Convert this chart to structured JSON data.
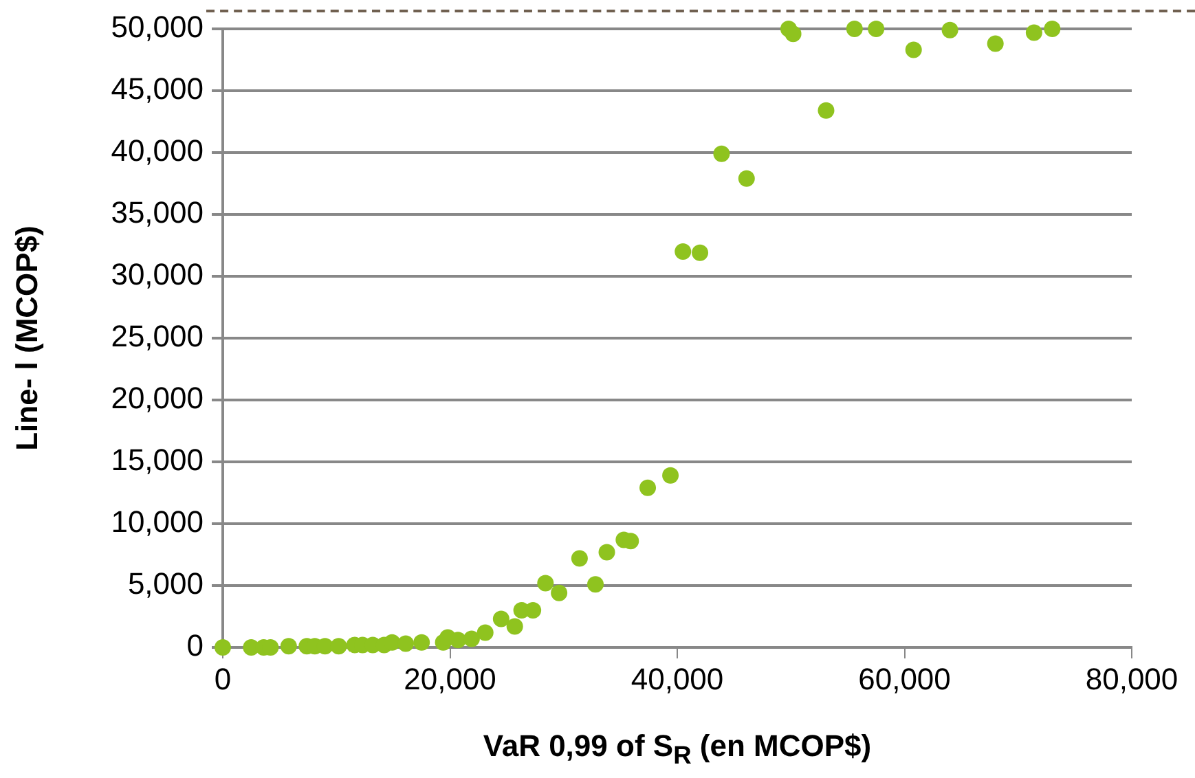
{
  "chart_data": {
    "type": "scatter",
    "xlabel": "VaR 0,99 of S$_{R}$ (en MCOP$)",
    "ylabel": "Line- l (MCOP$)",
    "xlim": [
      0,
      80000
    ],
    "ylim": [
      0,
      50000
    ],
    "xticks": [
      {
        "value": 0,
        "label": "0"
      },
      {
        "value": 20000,
        "label": "20,000"
      },
      {
        "value": 40000,
        "label": "40,000"
      },
      {
        "value": 60000,
        "label": "60,000"
      },
      {
        "value": 80000,
        "label": "80,000"
      }
    ],
    "yticks": [
      {
        "value": 0,
        "label": "0"
      },
      {
        "value": 5000,
        "label": "5,000"
      },
      {
        "value": 10000,
        "label": "10,000"
      },
      {
        "value": 15000,
        "label": "15,000"
      },
      {
        "value": 20000,
        "label": "20,000"
      },
      {
        "value": 25000,
        "label": "25,000"
      },
      {
        "value": 30000,
        "label": "30,000"
      },
      {
        "value": 35000,
        "label": "35,000"
      },
      {
        "value": 40000,
        "label": "40,000"
      },
      {
        "value": 45000,
        "label": "45,000"
      },
      {
        "value": 50000,
        "label": "50,000"
      }
    ],
    "grid": "y",
    "marker": "circle",
    "legend": false,
    "series": [
      {
        "color": "#8fc31f",
        "x": [
          0,
          2500,
          3600,
          4200,
          5800,
          7400,
          8100,
          9000,
          10200,
          11600,
          12300,
          13200,
          14200,
          14900,
          16100,
          17500,
          19400,
          19800,
          20700,
          21900,
          23100,
          24500,
          25700,
          26300,
          27300,
          28400,
          29600,
          31400,
          32800,
          33800,
          35300,
          35900,
          37400,
          39400,
          40500,
          42000,
          43900,
          46100,
          49800,
          50200,
          53100,
          55600,
          57500,
          60800,
          64000,
          68000,
          71400,
          73000
        ],
        "values": [
          0,
          0,
          0,
          0,
          100,
          100,
          100,
          100,
          100,
          200,
          200,
          200,
          200,
          400,
          300,
          400,
          400,
          800,
          600,
          700,
          1200,
          2300,
          1700,
          3000,
          3000,
          5200,
          4400,
          7200,
          5100,
          7700,
          8700,
          8600,
          12900,
          13900,
          32000,
          31900,
          39900,
          37900,
          50000,
          49600,
          43400,
          50000,
          50000,
          48300,
          49900,
          48800,
          49700,
          50000
        ]
      }
    ]
  }
}
